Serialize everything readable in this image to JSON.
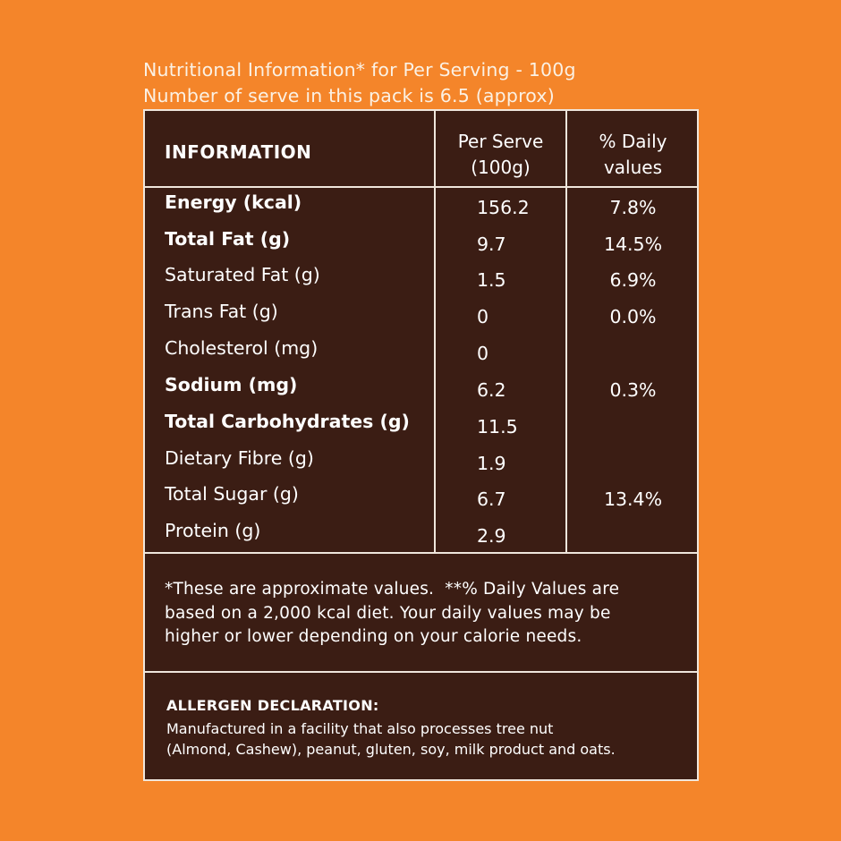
{
  "header": {
    "line1": "Nutritional Information* for Per Serving - 100g",
    "line2": "Number of serve in this pack is 6.5 (approx)"
  },
  "table": {
    "col_info": "INFORMATION",
    "col_serve": [
      "Per Serve",
      "(100g)"
    ],
    "col_daily": [
      "% Daily",
      "values"
    ],
    "rows": [
      {
        "name": "Energy (kcal)",
        "bold": true,
        "serve": "156.2",
        "daily": "7.8%"
      },
      {
        "name": "Total Fat (g)",
        "bold": true,
        "serve": "9.7",
        "daily": "14.5%"
      },
      {
        "name": "Saturated Fat (g)",
        "bold": false,
        "serve": "1.5",
        "daily": "6.9%"
      },
      {
        "name": "Trans Fat (g)",
        "bold": false,
        "serve": "0",
        "daily": "0.0%"
      },
      {
        "name": "Cholesterol (mg)",
        "bold": false,
        "serve": "0",
        "daily": ""
      },
      {
        "name": "Sodium (mg)",
        "bold": true,
        "serve": "6.2",
        "daily": "0.3%"
      },
      {
        "name": "Total Carbohydrates (g)",
        "bold": true,
        "serve": "11.5",
        "daily": ""
      },
      {
        "name": "Dietary Fibre (g)",
        "bold": false,
        "serve": "1.9",
        "daily": ""
      },
      {
        "name": "Total Sugar (g)",
        "bold": false,
        "serve": "6.7",
        "daily": "13.4%"
      },
      {
        "name": "Protein (g)",
        "bold": false,
        "serve": "2.9",
        "daily": ""
      }
    ]
  },
  "footnote": {
    "line1": "*These are approximate values.  **% Daily Values are",
    "line2": "based on a 2,000 kcal diet. Your daily values may be",
    "line3": "higher or lower depending on your calorie needs."
  },
  "allergen": {
    "title": "ALLERGEN DECLARATION:",
    "line1": "Manufactured in a facility that also processes tree nut",
    "line2": "(Almond, Cashew), peanut, gluten, soy, milk product and oats."
  },
  "colors": {
    "background": "#f4852a",
    "panel": "#3b1d14",
    "border": "#efe6dc",
    "text": "#ffffff"
  }
}
